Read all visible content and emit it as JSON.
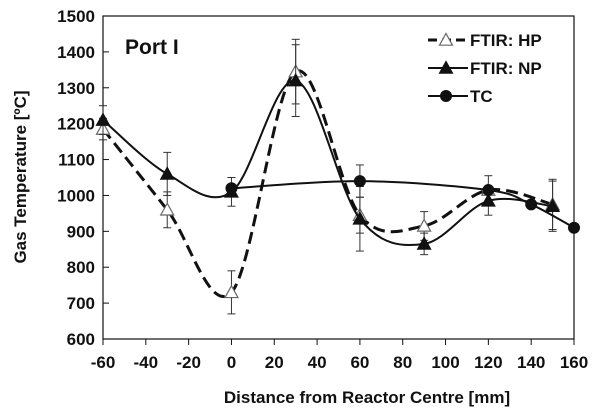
{
  "chart_data": {
    "type": "line",
    "panel_label": "Port I",
    "xlabel": "Distance from Reactor Centre [mm]",
    "ylabel": "Gas Temperature [ºC]",
    "xlim": [
      -60,
      160
    ],
    "ylim": [
      600,
      1500
    ],
    "x_ticks": [
      -60,
      -40,
      -20,
      0,
      20,
      40,
      60,
      80,
      100,
      120,
      140,
      160
    ],
    "y_ticks": [
      600,
      700,
      800,
      900,
      1000,
      1100,
      1200,
      1300,
      1400,
      1500
    ],
    "legend_position": "top-right",
    "grid": false,
    "series": [
      {
        "name": "FTIR: HP",
        "marker": "open-triangle",
        "line_style": "dashed",
        "points": [
          {
            "x": -60,
            "y": 1185,
            "err": 30
          },
          {
            "x": -30,
            "y": 960,
            "err": 50
          },
          {
            "x": 0,
            "y": 730,
            "err": 60
          },
          {
            "x": 30,
            "y": 1345,
            "err": 90
          },
          {
            "x": 60,
            "y": 945,
            "err": 50
          },
          {
            "x": 90,
            "y": 915,
            "err": 40
          },
          {
            "x": 120,
            "y": 1015,
            "err": 40
          },
          {
            "x": 150,
            "y": 975,
            "err": 70
          }
        ]
      },
      {
        "name": "FTIR: NP",
        "marker": "filled-triangle",
        "line_style": "solid",
        "points": [
          {
            "x": -60,
            "y": 1210,
            "err": 40
          },
          {
            "x": -30,
            "y": 1060,
            "err": 60
          },
          {
            "x": 0,
            "y": 1010,
            "err": 40
          },
          {
            "x": 30,
            "y": 1320,
            "err": 100
          },
          {
            "x": 60,
            "y": 935,
            "err": 90
          },
          {
            "x": 90,
            "y": 865,
            "err": 30
          },
          {
            "x": 120,
            "y": 985,
            "err": 40
          },
          {
            "x": 150,
            "y": 970,
            "err": 70
          }
        ]
      },
      {
        "name": "TC",
        "marker": "filled-circle",
        "line_style": "solid",
        "points": [
          {
            "x": 0,
            "y": 1020,
            "err": 0
          },
          {
            "x": 60,
            "y": 1040,
            "err": 45
          },
          {
            "x": 120,
            "y": 1015,
            "err": 0
          },
          {
            "x": 140,
            "y": 975,
            "err": 0
          },
          {
            "x": 160,
            "y": 910,
            "err": 0
          }
        ]
      }
    ]
  }
}
